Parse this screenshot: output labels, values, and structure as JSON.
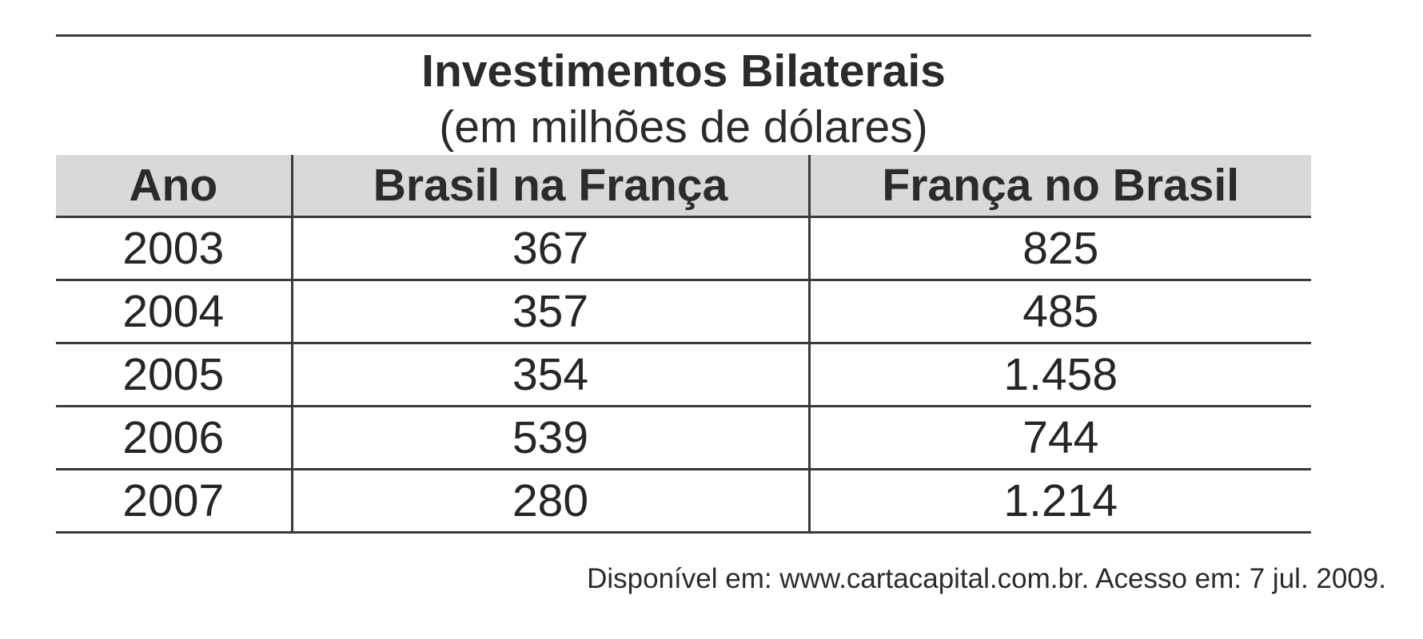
{
  "table": {
    "title": "Investimentos Bilaterais",
    "subtitle": "(em milhões de dólares)",
    "headers": [
      "Ano",
      "Brasil na França",
      "França no Brasil"
    ],
    "rows": [
      [
        "2003",
        "367",
        "825"
      ],
      [
        "2004",
        "357",
        "485"
      ],
      [
        "2005",
        "354",
        "1.458"
      ],
      [
        "2006",
        "539",
        "744"
      ],
      [
        "2007",
        "280",
        "1.214"
      ]
    ]
  },
  "source": "Disponível em: www.cartacapital.com.br. Acesso em: 7 jul. 2009."
}
